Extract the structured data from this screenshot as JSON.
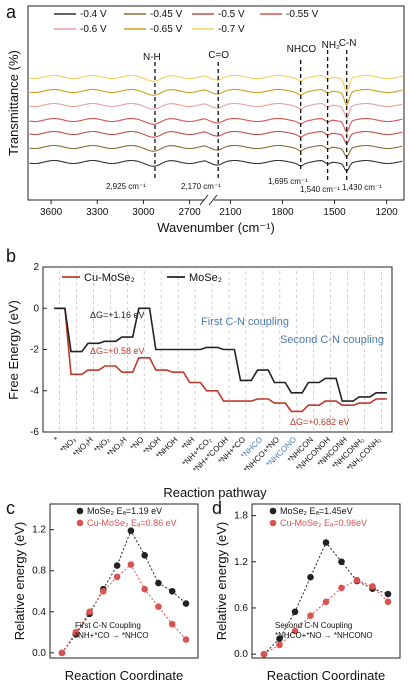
{
  "chart_data": [
    {
      "panel": "a",
      "type": "line",
      "xlabel": "Wavenumber (cm⁻¹)",
      "ylabel": "Transmittance (%)",
      "x_ticks": [
        "3600",
        "3300",
        "3000",
        "2700",
        "2100",
        "1800",
        "1500",
        "1200"
      ],
      "axis_break": [
        2600,
        2200
      ],
      "series": [
        {
          "name": "-0.4 V",
          "color": "#333333"
        },
        {
          "name": "-0.45 V",
          "color": "#8a6a3a"
        },
        {
          "name": "-0.5 V",
          "color": "#c0504d"
        },
        {
          "name": "-0.55 V",
          "color": "#d9534f"
        },
        {
          "name": "-0.6 V",
          "color": "#e8a0a0"
        },
        {
          "name": "-0.65 V",
          "color": "#c8a020"
        },
        {
          "name": "-0.7 V",
          "color": "#f0d060"
        }
      ],
      "band_labels": [
        "N-H",
        "C=O",
        "NHCO",
        "NH₂",
        "C-N"
      ],
      "band_positions": [
        {
          "label": "2,925 cm⁻¹",
          "x": 2925
        },
        {
          "label": "2,170 cm⁻¹",
          "x": 2170
        },
        {
          "label": "1,695 cm⁻¹",
          "x": 1695
        },
        {
          "label": "1,540 cm⁻¹",
          "x": 1540
        },
        {
          "label": "1,430 cm⁻¹",
          "x": 1430
        }
      ]
    },
    {
      "panel": "b",
      "type": "line",
      "xlabel": "Reaction pathway",
      "ylabel": "Free Energy (eV)",
      "ylim": [
        -6,
        2
      ],
      "y_ticks": [
        "2",
        "0",
        "-2",
        "-4",
        "-6"
      ],
      "categories": [
        "*",
        "*NO₃",
        "*NO₃H",
        "*NO₂",
        "*NO₂H",
        "*NO",
        "*NOH",
        "*NHOH",
        "*NH",
        "*NH+*CO₂",
        "*NH+*COOH",
        "*NH+*CO",
        "*NHCO",
        "*NHCO+*NO",
        "*NHCONO",
        "*NHCON",
        "*NHCONOH",
        "*NHCONH",
        "*NHCONH₂",
        "*NH₂CONH₂"
      ],
      "highlight_categories": [
        "*NHCO",
        "*NHCONO"
      ],
      "series": [
        {
          "name": "Cu-MoSe₂",
          "color": "#c0392b",
          "values": [
            0,
            -3.2,
            -3.0,
            -2.8,
            -3.1,
            -2.4,
            -3.0,
            -3.1,
            -3.6,
            -4.0,
            -4.5,
            -4.5,
            -4.4,
            -4.6,
            -5.0,
            -4.7,
            -4.5,
            -4.7,
            -4.6,
            -4.4
          ]
        },
        {
          "name": "MoSe₂",
          "color": "#222222",
          "values": [
            0,
            -2.1,
            -1.7,
            -1.6,
            -1.4,
            0,
            -2.0,
            -2.0,
            -2.0,
            -1.9,
            -2.0,
            -3.5,
            -3.0,
            -3.6,
            -4.1,
            -3.6,
            -3.4,
            -4.5,
            -4.3,
            -4.1
          ]
        }
      ],
      "annotations": [
        "ΔG=+1.16 eV",
        "ΔG=+0.58 eV",
        "First C-N coupling",
        "Second C-N coupling",
        "ΔG=+0.682 eV"
      ]
    },
    {
      "panel": "c",
      "type": "line",
      "xlabel": "Reaction Coordinate",
      "ylabel": "Relative energy (eV)",
      "ylim": [
        -0.05,
        1.45
      ],
      "y_ticks": [
        "0.0",
        "0.4",
        "0.8",
        "1.2"
      ],
      "series": [
        {
          "name": "MoSe₂ Eₐ=1.19 eV",
          "color": "#222222",
          "values": [
            0.0,
            0.18,
            0.38,
            0.62,
            0.85,
            1.19,
            0.95,
            0.68,
            0.6,
            0.48
          ]
        },
        {
          "name": "Cu-MoSe₂ Eₐ=0.86 eV",
          "color": "#d9534f",
          "values": [
            0.0,
            0.2,
            0.4,
            0.6,
            0.74,
            0.86,
            0.62,
            0.45,
            0.28,
            0.13
          ]
        }
      ],
      "annotation_lines": [
        "First C-N Coupling",
        "*NH+*CO → *NHCO"
      ]
    },
    {
      "panel": "d",
      "type": "line",
      "xlabel": "Reaction Coordinate",
      "ylabel": "Relative energy (eV)",
      "ylim": [
        -0.05,
        1.95
      ],
      "y_ticks": [
        "0.0",
        "0.6",
        "1.2",
        "1.8"
      ],
      "series": [
        {
          "name": "MoSe₂ Eₐ=1.45eV",
          "color": "#222222",
          "values": [
            0.0,
            0.2,
            0.55,
            1.0,
            1.45,
            1.2,
            0.95,
            0.85,
            0.78
          ]
        },
        {
          "name": "Cu-MoSe₂ Eₐ=0.96eV",
          "color": "#d9534f",
          "values": [
            0.0,
            0.12,
            0.3,
            0.5,
            0.68,
            0.86,
            0.96,
            0.88,
            0.68
          ]
        }
      ],
      "annotation_lines": [
        "Second C-N Coupling",
        "*NHCO+*NO → *NHCONO"
      ]
    }
  ]
}
